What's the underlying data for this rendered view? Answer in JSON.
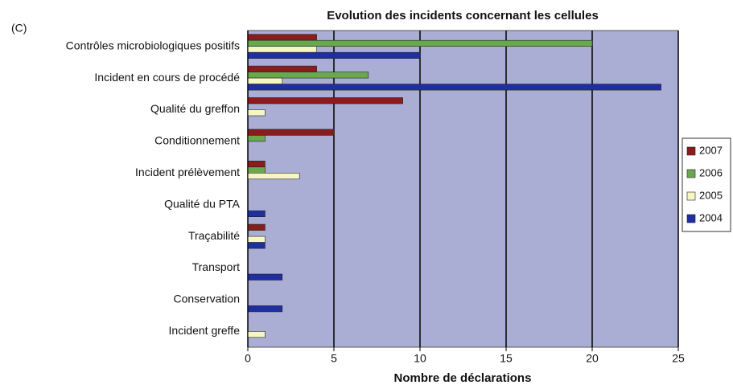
{
  "chart_data": {
    "type": "hbar",
    "panel_label": "(C)",
    "title": "Evolution des incidents concernant les cellules",
    "x_label": "Nombre de déclarations",
    "categories": [
      "Contrôles microbiologiques positifs",
      "Incident en cours de procédé",
      "Qualité du greffon",
      "Conditionnement",
      "Incident prélèvement",
      "Qualité du PTA",
      "Traçabilité",
      "Transport",
      "Conservation",
      "Incident greffe"
    ],
    "series": [
      {
        "name": "2007",
        "color": "#8b1c1c",
        "values": [
          4,
          4,
          9,
          5,
          1,
          0,
          1,
          0,
          0,
          0
        ]
      },
      {
        "name": "2006",
        "color": "#6aa84f",
        "values": [
          20,
          7,
          0,
          1,
          1,
          0,
          0,
          0,
          0,
          0
        ]
      },
      {
        "name": "2005",
        "color": "#f6f6c4",
        "values": [
          4,
          2,
          1,
          0,
          3,
          0,
          1,
          0,
          0,
          1
        ]
      },
      {
        "name": "2004",
        "color": "#1f2fa3",
        "values": [
          10,
          24,
          0,
          0,
          0,
          1,
          1,
          2,
          2,
          0
        ]
      }
    ],
    "xlim": [
      0,
      25
    ],
    "xticks": [
      0,
      5,
      10,
      15,
      20,
      25
    ],
    "grid": true,
    "legend": "right"
  }
}
